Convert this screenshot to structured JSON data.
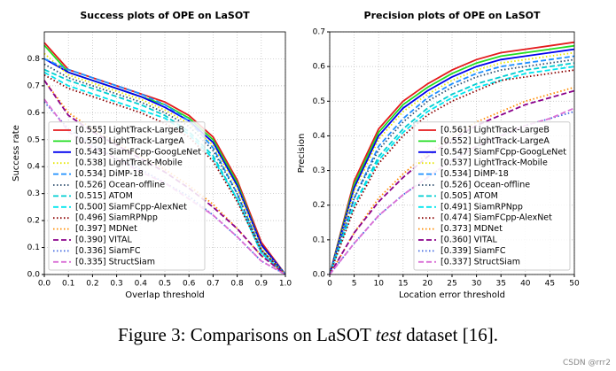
{
  "chart_data": [
    {
      "type": "line",
      "title": "Success plots of OPE on LaSOT",
      "xlabel": "Overlap threshold",
      "ylabel": "Success rate",
      "x": [
        0,
        0.1,
        0.2,
        0.3,
        0.4,
        0.5,
        0.6,
        0.7,
        0.8,
        0.9,
        1
      ],
      "xlim": [
        0,
        1
      ],
      "ylim": [
        0,
        0.9
      ],
      "xticks": [
        {
          "value": 0,
          "label": "0.0"
        },
        0.1,
        0.2,
        0.3,
        0.4,
        0.5,
        0.6,
        0.7,
        0.8,
        0.9,
        {
          "value": 1,
          "label": "1.0"
        }
      ],
      "yticks": [
        {
          "value": 0,
          "label": "0.0"
        },
        0.1,
        0.2,
        0.3,
        0.4,
        0.5,
        0.6,
        0.7,
        0.8
      ],
      "grid": true,
      "legend": "lower left",
      "series": [
        {
          "name": "[0.555] LightTrack-LargeB",
          "color": "#e41a1c",
          "linestyle": "solid",
          "values": [
            0.86,
            0.76,
            0.73,
            0.7,
            0.67,
            0.64,
            0.59,
            0.51,
            0.35,
            0.12,
            0
          ]
        },
        {
          "name": "[0.550] LightTrack-LargeA",
          "color": "#22dd22",
          "linestyle": "solid",
          "values": [
            0.85,
            0.75,
            0.72,
            0.69,
            0.66,
            0.63,
            0.58,
            0.5,
            0.34,
            0.11,
            0
          ]
        },
        {
          "name": "[0.543] SiamFCpp-GoogLeNet",
          "color": "#0000ee",
          "linestyle": "solid",
          "values": [
            0.8,
            0.75,
            0.72,
            0.69,
            0.66,
            0.62,
            0.57,
            0.49,
            0.33,
            0.11,
            0
          ]
        },
        {
          "name": "[0.538] LightTrack-Mobile",
          "color": "#e6e600",
          "linestyle": "dotted",
          "values": [
            0.82,
            0.74,
            0.71,
            0.68,
            0.65,
            0.61,
            0.56,
            0.48,
            0.32,
            0.1,
            0
          ]
        },
        {
          "name": "[0.534] DiMP-18",
          "color": "#1e90ff",
          "linestyle": "dashed",
          "values": [
            0.8,
            0.76,
            0.73,
            0.7,
            0.67,
            0.63,
            0.57,
            0.47,
            0.3,
            0.09,
            0
          ]
        },
        {
          "name": "[0.526] Ocean-offline",
          "color": "#2f4f6f",
          "linestyle": "dotted",
          "values": [
            0.78,
            0.73,
            0.7,
            0.67,
            0.64,
            0.6,
            0.55,
            0.46,
            0.3,
            0.09,
            0
          ]
        },
        {
          "name": "[0.515] ATOM",
          "color": "#00ced1",
          "linestyle": "dashed",
          "values": [
            0.76,
            0.72,
            0.69,
            0.66,
            0.63,
            0.59,
            0.53,
            0.44,
            0.28,
            0.08,
            0
          ]
        },
        {
          "name": "[0.500] SiamFCpp-AlexNet",
          "color": "#00e5ee",
          "linestyle": "dashed",
          "values": [
            0.75,
            0.7,
            0.67,
            0.64,
            0.61,
            0.58,
            0.52,
            0.43,
            0.28,
            0.08,
            0
          ]
        },
        {
          "name": "[0.496] SiamRPNpp",
          "color": "#8b0000",
          "linestyle": "dotted",
          "values": [
            0.74,
            0.69,
            0.66,
            0.63,
            0.6,
            0.56,
            0.51,
            0.42,
            0.27,
            0.09,
            0
          ]
        },
        {
          "name": "[0.397] MDNet",
          "color": "#ff8c00",
          "linestyle": "dotted",
          "values": [
            0.72,
            0.6,
            0.54,
            0.49,
            0.44,
            0.39,
            0.33,
            0.26,
            0.17,
            0.07,
            0
          ]
        },
        {
          "name": "[0.390] VITAL",
          "color": "#8b008b",
          "linestyle": "dashed",
          "values": [
            0.72,
            0.59,
            0.53,
            0.48,
            0.43,
            0.38,
            0.32,
            0.25,
            0.17,
            0.07,
            0
          ]
        },
        {
          "name": "[0.336] SiamFC",
          "color": "#4169e1",
          "linestyle": "dotted",
          "values": [
            0.64,
            0.54,
            0.48,
            0.43,
            0.39,
            0.34,
            0.29,
            0.22,
            0.14,
            0.05,
            0
          ]
        },
        {
          "name": "[0.335] StructSiam",
          "color": "#da70d6",
          "linestyle": "dashed",
          "values": [
            0.65,
            0.53,
            0.47,
            0.43,
            0.38,
            0.34,
            0.28,
            0.22,
            0.14,
            0.05,
            0
          ]
        }
      ]
    },
    {
      "type": "line",
      "title": "Precision plots of OPE on LaSOT",
      "xlabel": "Location error threshold",
      "ylabel": "Precision",
      "x": [
        0,
        5,
        10,
        15,
        20,
        25,
        30,
        35,
        40,
        45,
        50
      ],
      "xlim": [
        0,
        50
      ],
      "ylim": [
        0,
        0.7
      ],
      "xticks": [
        0,
        5,
        10,
        15,
        20,
        25,
        30,
        35,
        40,
        45,
        50
      ],
      "yticks": [
        {
          "value": 0,
          "label": "0.0"
        },
        0.1,
        0.2,
        0.3,
        0.4,
        0.5,
        0.6,
        0.7
      ],
      "grid": true,
      "legend": "lower right",
      "series": [
        {
          "name": "[0.561] LightTrack-LargeB",
          "color": "#e41a1c",
          "linestyle": "solid",
          "values": [
            0,
            0.27,
            0.42,
            0.5,
            0.55,
            0.59,
            0.62,
            0.64,
            0.65,
            0.66,
            0.67
          ]
        },
        {
          "name": "[0.552] LightTrack-LargeA",
          "color": "#22dd22",
          "linestyle": "solid",
          "values": [
            0,
            0.26,
            0.41,
            0.49,
            0.54,
            0.58,
            0.61,
            0.63,
            0.64,
            0.65,
            0.66
          ]
        },
        {
          "name": "[0.547] SiamFCpp-GoogLeNet",
          "color": "#0000ee",
          "linestyle": "solid",
          "values": [
            0,
            0.25,
            0.4,
            0.48,
            0.53,
            0.57,
            0.6,
            0.62,
            0.63,
            0.64,
            0.65
          ]
        },
        {
          "name": "[0.537] LightTrack-Mobile",
          "color": "#e6e600",
          "linestyle": "dotted",
          "values": [
            0,
            0.24,
            0.39,
            0.47,
            0.52,
            0.56,
            0.59,
            0.61,
            0.62,
            0.63,
            0.64
          ]
        },
        {
          "name": "[0.534] DiMP-18",
          "color": "#1e90ff",
          "linestyle": "dashed",
          "values": [
            0,
            0.22,
            0.37,
            0.45,
            0.51,
            0.55,
            0.58,
            0.6,
            0.61,
            0.62,
            0.63
          ]
        },
        {
          "name": "[0.526] Ocean-offline",
          "color": "#2f4f6f",
          "linestyle": "dotted",
          "values": [
            0,
            0.22,
            0.36,
            0.44,
            0.5,
            0.54,
            0.57,
            0.59,
            0.6,
            0.61,
            0.62
          ]
        },
        {
          "name": "[0.505] ATOM",
          "color": "#00ced1",
          "linestyle": "dashed",
          "values": [
            0,
            0.2,
            0.34,
            0.42,
            0.48,
            0.52,
            0.55,
            0.57,
            0.59,
            0.6,
            0.61
          ]
        },
        {
          "name": "[0.491] SiamRPNpp",
          "color": "#00e5ee",
          "linestyle": "dashed",
          "values": [
            0,
            0.2,
            0.33,
            0.41,
            0.47,
            0.51,
            0.54,
            0.56,
            0.58,
            0.59,
            0.6
          ]
        },
        {
          "name": "[0.474] SiamFCpp-AlexNet",
          "color": "#8b0000",
          "linestyle": "dotted",
          "values": [
            0,
            0.19,
            0.32,
            0.4,
            0.46,
            0.5,
            0.53,
            0.56,
            0.57,
            0.58,
            0.59
          ]
        },
        {
          "name": "[0.373] MDNet",
          "color": "#ff8c00",
          "linestyle": "dotted",
          "values": [
            0,
            0.12,
            0.22,
            0.29,
            0.35,
            0.4,
            0.44,
            0.47,
            0.5,
            0.52,
            0.54
          ]
        },
        {
          "name": "[0.360] VITAL",
          "color": "#8b008b",
          "linestyle": "dashed",
          "values": [
            0,
            0.12,
            0.21,
            0.28,
            0.34,
            0.39,
            0.43,
            0.46,
            0.49,
            0.51,
            0.53
          ]
        },
        {
          "name": "[0.339] SiamFC",
          "color": "#4169e1",
          "linestyle": "dotted",
          "values": [
            0,
            0.09,
            0.17,
            0.23,
            0.28,
            0.33,
            0.37,
            0.4,
            0.43,
            0.45,
            0.47
          ]
        },
        {
          "name": "[0.337] StructSiam",
          "color": "#da70d6",
          "linestyle": "dashed",
          "values": [
            0,
            0.09,
            0.17,
            0.23,
            0.28,
            0.33,
            0.37,
            0.4,
            0.43,
            0.45,
            0.48
          ]
        }
      ]
    }
  ],
  "caption": [
    "Figure 3: Comparisons on LaSOT ",
    "test",
    " dataset [16]."
  ],
  "watermark": "CSDN @rrr2"
}
